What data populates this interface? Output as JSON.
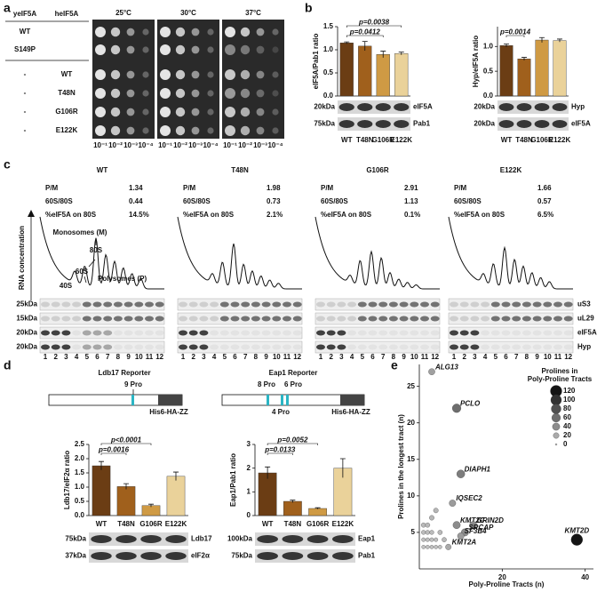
{
  "panel_a": {
    "letter": "a",
    "headers": [
      "yeIF5A",
      "heIF5A"
    ],
    "rows": [
      [
        "WT",
        null
      ],
      [
        "S149P",
        null
      ],
      [
        "-",
        "WT"
      ],
      [
        "-",
        "T48N"
      ],
      [
        "-",
        "G106R"
      ],
      [
        "-",
        "E122K"
      ]
    ],
    "temperatures": [
      "25°C",
      "30°C",
      "37°C"
    ],
    "dilutions": [
      "10⁻¹",
      "10⁻²",
      "10⁻³",
      "10⁻⁴"
    ]
  },
  "panel_b": {
    "letter": "b",
    "charts": [
      {
        "type": "bar",
        "ylabel": "eIF5A/Pab1 ratio",
        "categories": [
          "WT",
          "T48N",
          "G106R",
          "E122K"
        ],
        "values": [
          1.15,
          1.08,
          0.9,
          0.92
        ],
        "errors": [
          0.02,
          0.1,
          0.07,
          0.03
        ],
        "colors": [
          "#6b3d14",
          "#a0601c",
          "#cf9a44",
          "#ead29a"
        ],
        "ylim": [
          0,
          1.5
        ],
        "yticks": [
          {
            "value": 0,
            "label": "0.0"
          },
          {
            "value": 0.5,
            "label": "0.5"
          },
          {
            "value": 1,
            "label": "1.0"
          },
          {
            "value": 1.5,
            "label": "1.5"
          }
        ],
        "pvalues": [
          "p=0.0412",
          "p=0.0038"
        ],
        "blot": {
          "markers": [
            "20kDa",
            "75kDa"
          ],
          "bands": [
            "eIF5A",
            "Pab1"
          ]
        }
      },
      {
        "type": "bar",
        "ylabel": "Hyp/eIF5A ratio",
        "categories": [
          "WT",
          "T48N",
          "G106R",
          "E122K"
        ],
        "values": [
          1.02,
          0.75,
          1.13,
          1.12
        ],
        "errors": [
          0.03,
          0.03,
          0.05,
          0.03
        ],
        "colors": [
          "#6b3d14",
          "#a0601c",
          "#cf9a44",
          "#ead29a"
        ],
        "ylim": [
          0,
          1.4
        ],
        "yticks": [
          {
            "value": 0,
            "label": "0.0"
          },
          {
            "value": 0.5,
            "label": "0.5"
          },
          {
            "value": 1,
            "label": "1.0"
          }
        ],
        "pvalues": [
          "p=0.0014"
        ],
        "blot": {
          "markers": [
            "20kDa",
            "20kDa"
          ],
          "bands": [
            "Hyp",
            "eIF5A"
          ]
        }
      }
    ]
  },
  "panel_c": {
    "letter": "c",
    "yaxis_label": "RNA concentration",
    "profiles": [
      {
        "name": "WT",
        "stats": [
          [
            "P/M",
            "1.34"
          ],
          [
            "60S/80S",
            "0.44"
          ],
          [
            "%eIF5A on 80S",
            "14.5%"
          ]
        ]
      },
      {
        "name": "T48N",
        "stats": [
          [
            "P/M",
            "1.98"
          ],
          [
            "60S/80S",
            "0.73"
          ],
          [
            "%eIF5A on 80S",
            "2.1%"
          ]
        ]
      },
      {
        "name": "G106R",
        "stats": [
          [
            "P/M",
            "2.91"
          ],
          [
            "60S/80S",
            "1.13"
          ],
          [
            "%eIF5A on 80S",
            "0.1%"
          ]
        ]
      },
      {
        "name": "E122K",
        "stats": [
          [
            "P/M",
            "1.66"
          ],
          [
            "60S/80S",
            "0.57"
          ],
          [
            "%eIF5A on 80S",
            "6.5%"
          ]
        ]
      }
    ],
    "annotations": [
      "Monosomes (M)",
      "80S",
      "60S",
      "40S",
      "Polysomes (P)"
    ],
    "markers": [
      "25kDa",
      "15kDa",
      "20kDa",
      "20kDa"
    ],
    "bands": [
      "uS3",
      "uL29",
      "eIF5A",
      "Hyp"
    ],
    "lanes": [
      "1",
      "2",
      "3",
      "4",
      "5",
      "6",
      "7",
      "8",
      "9",
      "10",
      "11",
      "12"
    ]
  },
  "panel_d": {
    "letter": "d",
    "reporters": [
      {
        "title": "Ldb17 Reporter",
        "construct_labels": [
          "9 Pro",
          "His6-HA-ZZ"
        ],
        "chart": {
          "type": "bar",
          "ylabel": "Ldb17/eIF2α ratio",
          "categories": [
            "WT",
            "T48N",
            "G106R",
            "E122K"
          ],
          "values": [
            1.75,
            1.02,
            0.35,
            1.38
          ],
          "errors": [
            0.15,
            0.1,
            0.05,
            0.15
          ],
          "colors": [
            "#6b3d14",
            "#a0601c",
            "#cf9a44",
            "#ead29a"
          ],
          "ylim": [
            0,
            2.5
          ],
          "yticks": [
            {
              "value": 0,
              "label": "0.0"
            },
            {
              "value": 0.5,
              "label": "0.5"
            },
            {
              "value": 1,
              "label": "1.0"
            },
            {
              "value": 1.5,
              "label": "1.5"
            },
            {
              "value": 2,
              "label": "2.0"
            },
            {
              "value": 2.5,
              "label": "2.5"
            }
          ],
          "pvalues": [
            "p=0.0016",
            "p<0.0001"
          ],
          "blot": {
            "markers": [
              "75kDa",
              "37kDa"
            ],
            "bands": [
              "Ldb17",
              "eIF2α"
            ]
          }
        }
      },
      {
        "title": "Eap1 Reporter",
        "construct_labels": [
          "8 Pro",
          "6 Pro",
          "4 Pro",
          "His6-HA-ZZ"
        ],
        "chart": {
          "type": "bar",
          "ylabel": "Eap1/Pab1 ratio",
          "categories": [
            "WT",
            "T48N",
            "G106R",
            "E122K"
          ],
          "values": [
            1.8,
            0.6,
            0.3,
            2.0
          ],
          "errors": [
            0.25,
            0.05,
            0.03,
            0.4
          ],
          "colors": [
            "#6b3d14",
            "#a0601c",
            "#cf9a44",
            "#ead29a"
          ],
          "ylim": [
            0,
            3
          ],
          "yticks": [
            0,
            1,
            2,
            3
          ],
          "pvalues": [
            "p=0.0133",
            "p=0.0052"
          ],
          "blot": {
            "markers": [
              "100kDa",
              "75kDa"
            ],
            "bands": [
              "Eap1",
              "Pab1"
            ]
          }
        }
      }
    ]
  },
  "panel_e": {
    "letter": "e",
    "chart_data": {
      "type": "scatter",
      "xlabel": "Poly-Proline Tracts (n)",
      "ylabel": "Prolines in the longest tract (n)",
      "size_title": [
        "Prolines in",
        "Poly-Proline Tracts"
      ],
      "size_legend": [
        120,
        100,
        80,
        60,
        40,
        20,
        0
      ],
      "x": [
        3,
        9,
        10,
        8,
        9,
        13,
        11,
        10,
        7,
        38,
        1,
        2,
        3,
        4,
        5,
        1,
        2,
        3,
        4,
        1,
        2,
        3,
        1,
        2,
        3,
        4,
        6,
        5
      ],
      "values": [
        27,
        22,
        13,
        9,
        6,
        6,
        5,
        4.5,
        3,
        4,
        3,
        3,
        3,
        3,
        3,
        4,
        4,
        4,
        4,
        5,
        5,
        5,
        6,
        6,
        7,
        8,
        4,
        5
      ],
      "sizes": [
        27,
        60,
        50,
        30,
        40,
        40,
        40,
        30,
        20,
        120,
        5,
        5,
        5,
        5,
        5,
        6,
        6,
        6,
        6,
        8,
        8,
        8,
        10,
        10,
        12,
        12,
        10,
        10
      ],
      "labels": [
        "ALG13",
        "PCLO",
        "DIAPH1",
        "IQSEC2",
        "KMT2C",
        "GRIN2D",
        "SRCAP",
        "SF3B4",
        "KMT2A",
        "KMT2D",
        null,
        null,
        null,
        null,
        null,
        null,
        null,
        null,
        null,
        null,
        null,
        null,
        null,
        null,
        null,
        null,
        null,
        null
      ],
      "xlim": [
        0,
        42
      ],
      "ylim": [
        0,
        28
      ],
      "xticks": [
        20,
        40
      ],
      "yticks": [
        5,
        10,
        15,
        20,
        25
      ]
    }
  }
}
